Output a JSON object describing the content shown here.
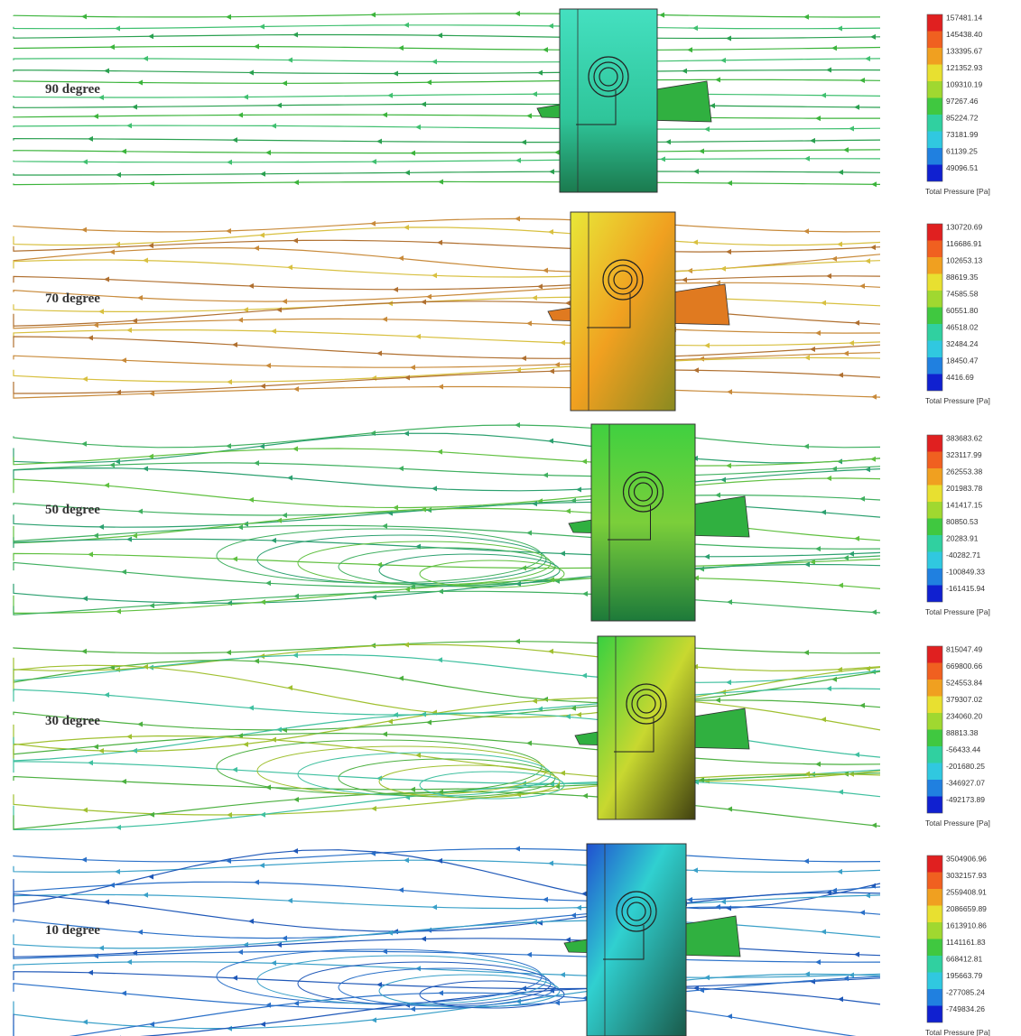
{
  "panels": [
    {
      "label": "90 degree",
      "legend": {
        "title": "Total Pressure [Pa]",
        "values": [
          "157481.14",
          "145438.40",
          "133395.67",
          "121352.93",
          "109310.19",
          "97267.46",
          "85224.72",
          "73181.99",
          "61139.25",
          "49096.51"
        ]
      }
    },
    {
      "label": "70 degree",
      "legend": {
        "title": "Total Pressure [Pa]",
        "values": [
          "130720.69",
          "116686.91",
          "102653.13",
          "88619.35",
          "74585.58",
          "60551.80",
          "46518.02",
          "32484.24",
          "18450.47",
          "4416.69"
        ]
      }
    },
    {
      "label": "50 degree",
      "legend": {
        "title": "Total Pressure [Pa]",
        "values": [
          "383683.62",
          "323117.99",
          "262553.38",
          "201983.78",
          "141417.15",
          "80850.53",
          "20283.91",
          "-40282.71",
          "-100849.33",
          "-161415.94"
        ]
      }
    },
    {
      "label": "30 degree",
      "legend": {
        "title": "Total Pressure [Pa]",
        "values": [
          "815047.49",
          "669800.66",
          "524553.84",
          "379307.02",
          "234060.20",
          "88813.38",
          "-56433.44",
          "-201680.25",
          "-346927.07",
          "-492173.89"
        ]
      }
    },
    {
      "label": "10 degree",
      "legend": {
        "title": "Total Pressure [Pa]",
        "values": [
          "3504906.96",
          "3032157.93",
          "2559408.91",
          "2086659.89",
          "1613910.86",
          "1141161.83",
          "668412.81",
          "195663.79",
          "-277085.24",
          "-749834.26"
        ]
      }
    }
  ]
}
